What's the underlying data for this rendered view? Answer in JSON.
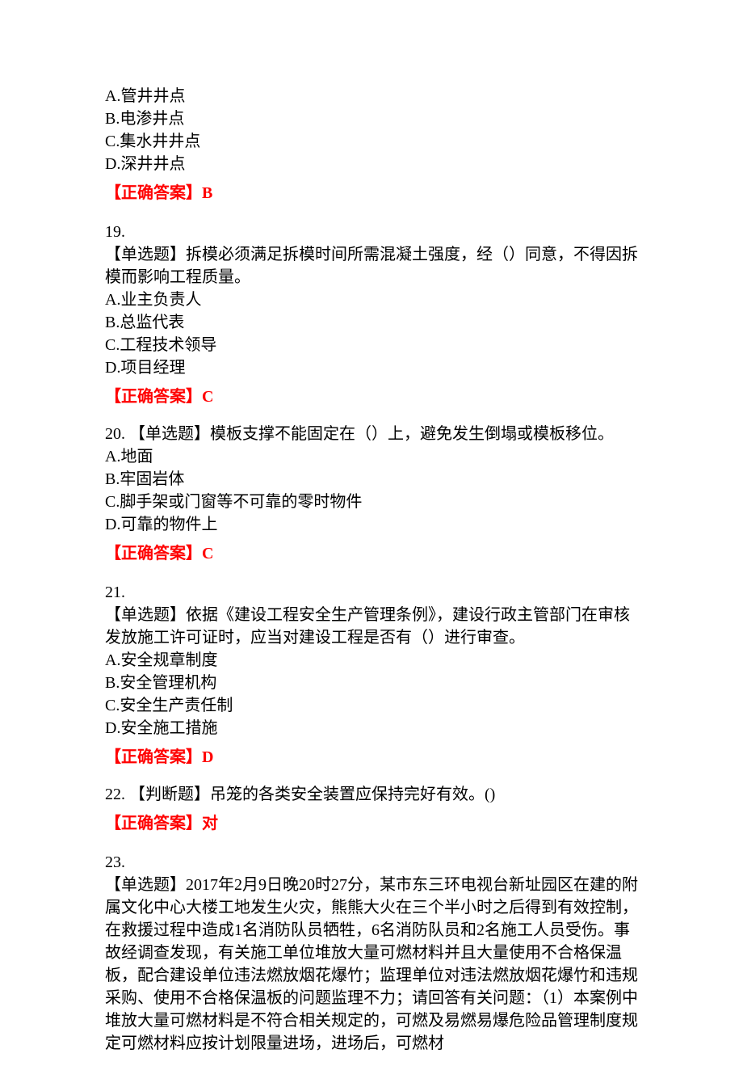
{
  "colors": {
    "text": "#000000",
    "answer": "#ff0000",
    "background": "#ffffff"
  },
  "typography": {
    "font_family": "SimSun",
    "font_size_pt": 15,
    "line_height": 1.4
  },
  "q18": {
    "options": {
      "A": "A.管井井点",
      "B": "B.电渗井点",
      "C": "C.集水井井点",
      "D": "D.深井井点"
    },
    "answer_label": "【正确答案】",
    "answer_value": "B"
  },
  "q19": {
    "number": "19.",
    "stem": "【单选题】拆模必须满足拆模时间所需混凝土强度，经（）同意，不得因拆模而影响工程质量。",
    "options": {
      "A": "A.业主负责人",
      "B": "B.总监代表",
      "C": "C.工程技术领导",
      "D": "D.项目经理"
    },
    "answer_label": "【正确答案】",
    "answer_value": "C"
  },
  "q20": {
    "number_stem": "20. 【单选题】模板支撑不能固定在（）上，避免发生倒塌或模板移位。",
    "options": {
      "A": "A.地面",
      "B": "B.牢固岩体",
      "C": "C.脚手架或门窗等不可靠的零时物件",
      "D": "D.可靠的物件上"
    },
    "answer_label": "【正确答案】",
    "answer_value": "C"
  },
  "q21": {
    "number": "21.",
    "stem": "【单选题】依据《建设工程安全生产管理条例》，建设行政主管部门在审核发放施工许可证时，应当对建设工程是否有（）进行审查。",
    "options": {
      "A": "A.安全规章制度",
      "B": "B.安全管理机构",
      "C": "C.安全生产责任制",
      "D": "D.安全施工措施"
    },
    "answer_label": "【正确答案】",
    "answer_value": "D"
  },
  "q22": {
    "number_stem": "22. 【判断题】吊笼的各类安全装置应保持完好有效。()",
    "answer_label": "【正确答案】",
    "answer_value": "对"
  },
  "q23": {
    "number": "23.",
    "stem": "【单选题】2017年2月9日晚20时27分，某市东三环电视台新址园区在建的附属文化中心大楼工地发生火灾，熊熊大火在三个半小时之后得到有效控制，在救援过程中造成1名消防队员牺牲，6名消防队员和2名施工人员受伤。事故经调查发现，有关施工单位堆放大量可燃材料并且大量使用不合格保温板，配合建设单位违法燃放烟花爆竹；监理单位对违法燃放烟花爆竹和违规采购、使用不合格保温板的问题监理不力；请回答有关问题：（1）本案例中堆放大量可燃材料是不符合相关规定的，可燃及易燃易爆危险品管理制度规定可燃材料应按计划限量进场，进场后，可燃材"
  }
}
